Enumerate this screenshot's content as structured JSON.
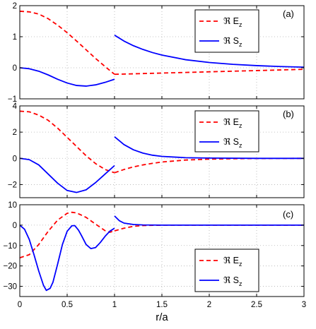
{
  "chart_data": [
    {
      "type": "line",
      "panel_label": "(a)",
      "xlim": [
        0,
        3
      ],
      "ylim": [
        -1,
        2
      ],
      "x_ticks": [
        0,
        0.5,
        1,
        1.5,
        2,
        2.5,
        3
      ],
      "y_ticks": [
        -1,
        0,
        1,
        2
      ],
      "y_tick_labels": [
        "−1",
        "0",
        "1",
        "2"
      ],
      "show_x_tick_labels": false,
      "grid": true,
      "legend_position": "top-right",
      "series": [
        {
          "name": "ℜ E",
          "name_sub": "z",
          "color": "#ff0000",
          "style": "dashed",
          "segments": [
            {
              "x": [
                0,
                0.1,
                0.2,
                0.3,
                0.4,
                0.5,
                0.6,
                0.7,
                0.8,
                0.9,
                1.0
              ],
              "y": [
                1.82,
                1.8,
                1.73,
                1.58,
                1.37,
                1.13,
                0.86,
                0.58,
                0.3,
                0.04,
                -0.21
              ]
            },
            {
              "x": [
                1.0,
                1.25,
                1.5,
                1.75,
                2.0,
                2.25,
                2.5,
                2.75,
                3.0
              ],
              "y": [
                -0.21,
                -0.19,
                -0.17,
                -0.15,
                -0.13,
                -0.11,
                -0.09,
                -0.07,
                -0.05
              ]
            }
          ]
        },
        {
          "name": "ℜ S",
          "name_sub": "z",
          "color": "#0000ff",
          "style": "solid",
          "segments": [
            {
              "x": [
                0,
                0.1,
                0.2,
                0.3,
                0.4,
                0.5,
                0.6,
                0.7,
                0.8,
                0.9,
                1.0
              ],
              "y": [
                0,
                -0.03,
                -0.11,
                -0.23,
                -0.37,
                -0.49,
                -0.57,
                -0.59,
                -0.55,
                -0.47,
                -0.37
              ]
            },
            {
              "x": [
                1.0,
                1.1,
                1.2,
                1.3,
                1.4,
                1.5,
                1.75,
                2.0,
                2.25,
                2.5,
                2.75,
                3.0
              ],
              "y": [
                1.05,
                0.86,
                0.71,
                0.59,
                0.49,
                0.41,
                0.26,
                0.17,
                0.11,
                0.07,
                0.04,
                0.02
              ]
            }
          ]
        }
      ]
    },
    {
      "type": "line",
      "panel_label": "(b)",
      "xlim": [
        0,
        3
      ],
      "ylim": [
        -3,
        4
      ],
      "x_ticks": [
        0,
        0.5,
        1,
        1.5,
        2,
        2.5,
        3
      ],
      "y_ticks": [
        -2,
        0,
        2,
        4
      ],
      "y_tick_labels": [
        "−2",
        "0",
        "2",
        "4"
      ],
      "show_x_tick_labels": false,
      "grid": true,
      "legend_position": "top-right",
      "series": [
        {
          "name": "ℜ E",
          "name_sub": "z",
          "color": "#ff0000",
          "style": "dashed",
          "segments": [
            {
              "x": [
                0,
                0.1,
                0.2,
                0.3,
                0.4,
                0.5,
                0.6,
                0.7,
                0.8,
                0.9,
                1.0
              ],
              "y": [
                3.6,
                3.55,
                3.3,
                2.9,
                2.3,
                1.6,
                0.9,
                0.2,
                -0.4,
                -0.85,
                -1.1
              ]
            },
            {
              "x": [
                1.0,
                1.1,
                1.2,
                1.3,
                1.4,
                1.5,
                1.75,
                2.0,
                2.25,
                2.5,
                3.0
              ],
              "y": [
                -1.1,
                -0.85,
                -0.65,
                -0.5,
                -0.38,
                -0.28,
                -0.13,
                -0.06,
                -0.03,
                -0.01,
                0
              ]
            }
          ]
        },
        {
          "name": "ℜ S",
          "name_sub": "z",
          "color": "#0000ff",
          "style": "solid",
          "segments": [
            {
              "x": [
                0,
                0.1,
                0.2,
                0.3,
                0.4,
                0.5,
                0.6,
                0.7,
                0.8,
                0.9,
                1.0
              ],
              "y": [
                0,
                -0.1,
                -0.5,
                -1.2,
                -1.9,
                -2.45,
                -2.6,
                -2.4,
                -1.85,
                -1.2,
                -0.55
              ]
            },
            {
              "x": [
                1.0,
                1.1,
                1.2,
                1.3,
                1.4,
                1.5,
                1.75,
                2.0,
                2.5,
                3.0
              ],
              "y": [
                1.65,
                1.05,
                0.65,
                0.4,
                0.24,
                0.15,
                0.05,
                0.02,
                0,
                0
              ]
            }
          ]
        }
      ]
    },
    {
      "type": "line",
      "panel_label": "(c)",
      "xlim": [
        0,
        3
      ],
      "ylim": [
        -35,
        10
      ],
      "x_ticks": [
        0,
        0.5,
        1,
        1.5,
        2,
        2.5,
        3
      ],
      "x_tick_labels": [
        "0",
        "0.5",
        "1",
        "1.5",
        "2",
        "2.5",
        "3"
      ],
      "y_ticks": [
        -30,
        -20,
        -10,
        0,
        10
      ],
      "y_tick_labels": [
        "−30",
        "−20",
        "−10",
        "0",
        "10"
      ],
      "show_x_tick_labels": true,
      "xlabel": "r/a",
      "grid": true,
      "legend_position": "bottom-right",
      "series": [
        {
          "name": "ℜ E",
          "name_sub": "z",
          "color": "#ff0000",
          "style": "dashed",
          "segments": [
            {
              "x": [
                0,
                0.1,
                0.2,
                0.3,
                0.4,
                0.5,
                0.55,
                0.6,
                0.7,
                0.8,
                0.9,
                0.95,
                1.0
              ],
              "y": [
                -16,
                -14.5,
                -9.5,
                -3,
                2.5,
                5.8,
                6.3,
                6.0,
                3.8,
                0.5,
                -2.7,
                -3.5,
                -2.8
              ]
            },
            {
              "x": [
                1.0,
                1.1,
                1.2,
                1.3,
                1.5,
                2.0,
                3.0
              ],
              "y": [
                -2.8,
                -1.5,
                -0.6,
                -0.2,
                0,
                0,
                0
              ]
            }
          ]
        },
        {
          "name": "ℜ S",
          "name_sub": "z",
          "color": "#0000ff",
          "style": "solid",
          "segments": [
            {
              "x": [
                0,
                0.05,
                0.1,
                0.15,
                0.2,
                0.25,
                0.28,
                0.32,
                0.35,
                0.4,
                0.45,
                0.5,
                0.55,
                0.58,
                0.62,
                0.65,
                0.7,
                0.75,
                0.8,
                0.85,
                0.9,
                0.95,
                1.0
              ],
              "y": [
                0,
                -2,
                -7,
                -14.5,
                -22.5,
                -29.5,
                -32,
                -31,
                -28,
                -19,
                -9.5,
                -3,
                -0.3,
                -0.2,
                -2.5,
                -5,
                -9.5,
                -11.5,
                -11,
                -8.5,
                -5.5,
                -3,
                -1.5
              ]
            },
            {
              "x": [
                1.0,
                1.05,
                1.1,
                1.2,
                1.3,
                1.5,
                2.0,
                3.0
              ],
              "y": [
                4.5,
                2.2,
                1.0,
                0.3,
                0.1,
                0,
                0,
                0
              ]
            }
          ]
        }
      ]
    }
  ]
}
